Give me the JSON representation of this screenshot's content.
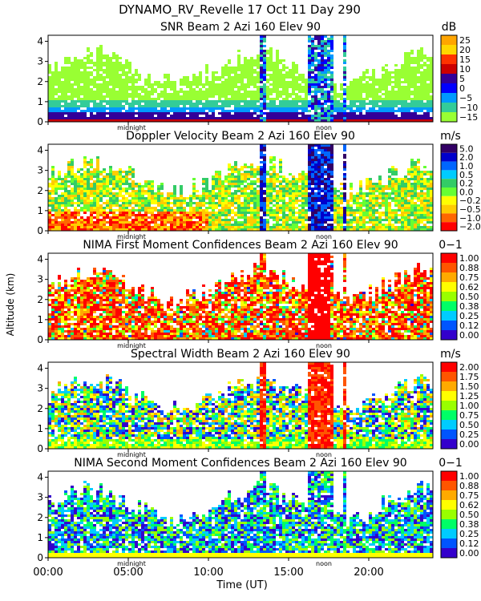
{
  "figure": {
    "header": "DYNAMO_RV_Revelle   17 Oct 11 Day 290",
    "xlabel": "Time (UT)",
    "ylabel": "Altitude (km)",
    "x_ticks": [
      "00:00",
      "05:00",
      "10:00",
      "15:00",
      "20:00"
    ],
    "x_tick_hours": [
      0,
      5,
      10,
      15,
      20
    ],
    "markers": [
      {
        "label": "midnight",
        "hour": 5.2
      },
      {
        "label": "noon",
        "hour": 17.2
      }
    ]
  },
  "chart_data": [
    {
      "type": "heatmap",
      "title": "SNR Beam 2 Azi 160 Elev 90",
      "unit": "dB",
      "xlim": [
        0,
        24
      ],
      "ylim": [
        0,
        4.3
      ],
      "y_ticks": [
        "0",
        "1",
        "2",
        "3",
        "4"
      ],
      "colorbar": {
        "labels": [
          "25",
          "20",
          "15",
          "10",
          "5",
          "0",
          "−5",
          "−10",
          "−15"
        ],
        "colors": [
          "#ffa500",
          "#ffd700",
          "#ff3300",
          "#cc0000",
          "#330099",
          "#0000ff",
          "#0099ff",
          "#33cc99",
          "#99ff33"
        ]
      }
    },
    {
      "type": "heatmap",
      "title": "Doppler Velocity Beam 2 Azi 160 Elev 90",
      "unit": "m/s",
      "xlim": [
        0,
        24
      ],
      "ylim": [
        0,
        4.3
      ],
      "y_ticks": [
        "0",
        "1",
        "2",
        "3",
        "4"
      ],
      "colorbar": {
        "labels": [
          "5.0",
          "2.0",
          "1.0",
          "0.5",
          "0.2",
          "0.0",
          "−0.2",
          "−0.5",
          "−1.0",
          "−2.0"
        ],
        "colors": [
          "#330066",
          "#0000cc",
          "#0066ff",
          "#00ccff",
          "#33cc66",
          "#66ff33",
          "#ffff00",
          "#ffcc00",
          "#ff6600",
          "#ff0000"
        ]
      }
    },
    {
      "type": "heatmap",
      "title": "NIMA First Moment Confidences Beam 2 Azi 160 Elev 90",
      "unit": "0−1",
      "xlim": [
        0,
        24
      ],
      "ylim": [
        0,
        4.3
      ],
      "y_ticks": [
        "0",
        "1",
        "2",
        "3",
        "4"
      ],
      "colorbar": {
        "labels": [
          "1.00",
          "0.88",
          "0.75",
          "0.62",
          "0.50",
          "0.38",
          "0.25",
          "0.12",
          "0.00"
        ],
        "colors": [
          "#ff0000",
          "#ff5500",
          "#ffaa00",
          "#ffff00",
          "#99ff00",
          "#00ff66",
          "#00ccff",
          "#0055ff",
          "#3300cc"
        ]
      }
    },
    {
      "type": "heatmap",
      "title": "Spectral Width Beam 2 Azi 160 Elev 90",
      "unit": "m/s",
      "xlim": [
        0,
        24
      ],
      "ylim": [
        0,
        4.3
      ],
      "y_ticks": [
        "0",
        "1",
        "2",
        "3",
        "4"
      ],
      "colorbar": {
        "labels": [
          "2.00",
          "1.75",
          "1.50",
          "1.25",
          "1.00",
          "0.75",
          "0.50",
          "0.25",
          "0.00"
        ],
        "colors": [
          "#ff0000",
          "#ff5500",
          "#ffaa00",
          "#ffff00",
          "#99ff00",
          "#00ff66",
          "#00ccff",
          "#0055ff",
          "#3300cc"
        ]
      }
    },
    {
      "type": "heatmap",
      "title": "NIMA Second Moment Confidences Beam 2 Azi 160 Elev 90",
      "unit": "0−1",
      "xlim": [
        0,
        24
      ],
      "ylim": [
        0,
        4.3
      ],
      "y_ticks": [
        "0",
        "1",
        "2",
        "3",
        "4"
      ],
      "colorbar": {
        "labels": [
          "1.00",
          "0.88",
          "0.75",
          "0.62",
          "0.50",
          "0.38",
          "0.25",
          "0.12",
          "0.00"
        ],
        "colors": [
          "#ff0000",
          "#ff5500",
          "#ffaa00",
          "#ffff00",
          "#99ff00",
          "#00ff66",
          "#00ccff",
          "#0055ff",
          "#3300cc"
        ]
      }
    }
  ]
}
